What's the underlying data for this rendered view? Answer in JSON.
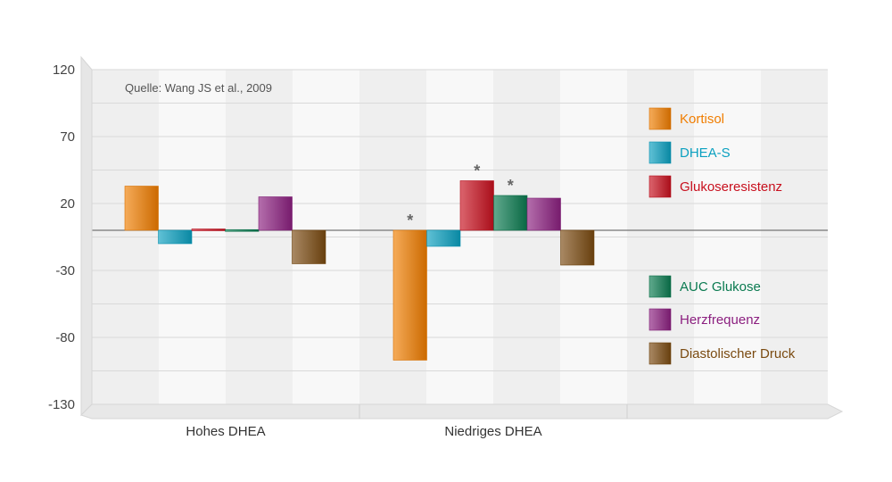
{
  "chart_data": {
    "type": "bar",
    "source": "Quelle: Wang JS et al., 2009",
    "categories": [
      "Hohes DHEA",
      "Niedriges DHEA"
    ],
    "ylim": [
      -130,
      120
    ],
    "yticks": [
      "120",
      "70",
      "20",
      "-30",
      "-80",
      "-130"
    ],
    "grid": true,
    "legend_position": "right",
    "series": [
      {
        "name": "Kortisol",
        "values": [
          33,
          -97
        ],
        "color": "#f07d00",
        "significant": [
          false,
          true
        ]
      },
      {
        "name": "DHEA-S",
        "values": [
          -10,
          -12
        ],
        "color": "#0aa0c0",
        "significant": [
          false,
          false
        ]
      },
      {
        "name": "Glukoseresistenz",
        "values": [
          1,
          37
        ],
        "color": "#c8101e",
        "significant": [
          false,
          true
        ]
      },
      {
        "name": "AUC Glukose",
        "values": [
          0.5,
          26
        ],
        "color": "#0a7a50",
        "significant": [
          false,
          true
        ]
      },
      {
        "name": "Herzfrequenz",
        "values": [
          25,
          24
        ],
        "color": "#8c2080",
        "significant": [
          false,
          false
        ]
      },
      {
        "name": "Diastolischer Druck",
        "values": [
          -25,
          -26
        ],
        "color": "#7a4a10",
        "significant": [
          false,
          false
        ]
      }
    ],
    "significance_marker": "*"
  }
}
